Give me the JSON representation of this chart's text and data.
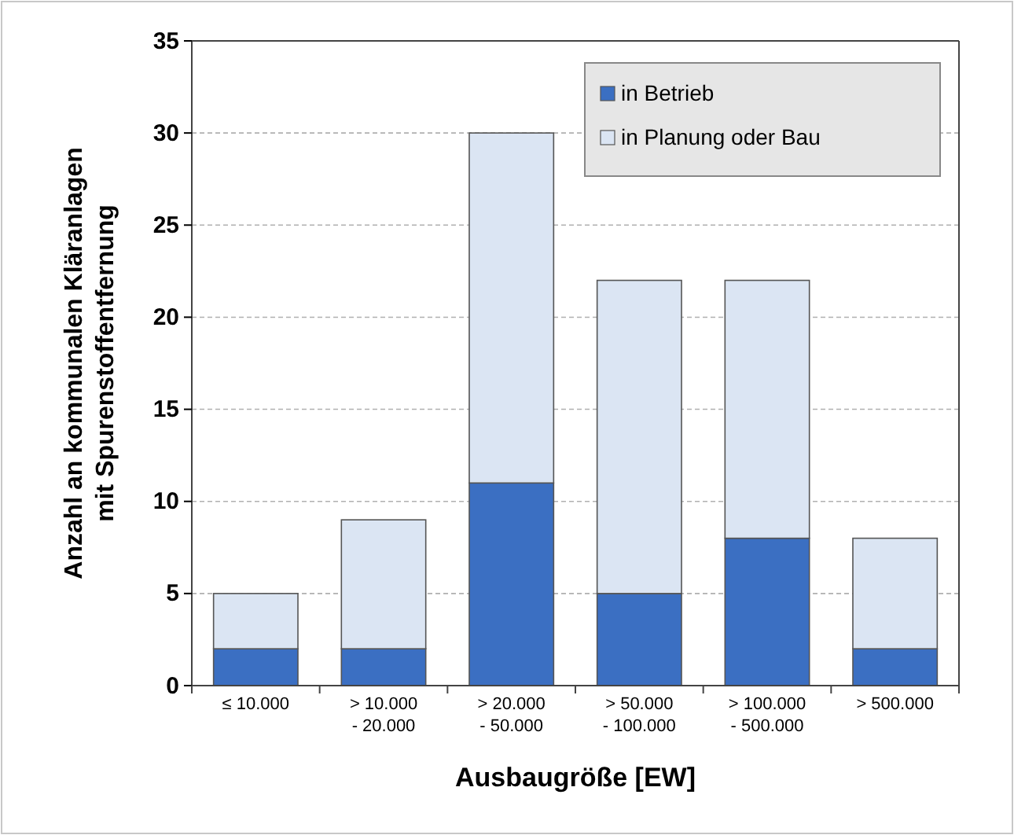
{
  "chart_data": {
    "type": "bar",
    "stacked": true,
    "xlabel": "Ausbaugröße [EW]",
    "ylabel": "Anzahl an kommunalen Kläranlagen mit Spurenstoffentfernung",
    "categories": [
      "≤ 10.000",
      "> 10.000 - 20.000",
      "> 20.000 - 50.000",
      "> 50.000 - 100.000",
      "> 100.000 - 500.000",
      "> 500.000"
    ],
    "series": [
      {
        "name": "in Betrieb",
        "color": "#3b6fc2",
        "values": [
          2,
          2,
          11,
          5,
          8,
          2
        ]
      },
      {
        "name": "in Planung oder Bau",
        "color": "#dbe5f3",
        "values": [
          3,
          7,
          19,
          17,
          14,
          6
        ]
      }
    ],
    "ylim": [
      0,
      35
    ],
    "yticks": [
      0,
      5,
      10,
      15,
      20,
      25,
      30,
      35
    ],
    "grid": "y",
    "legend": "top right"
  }
}
